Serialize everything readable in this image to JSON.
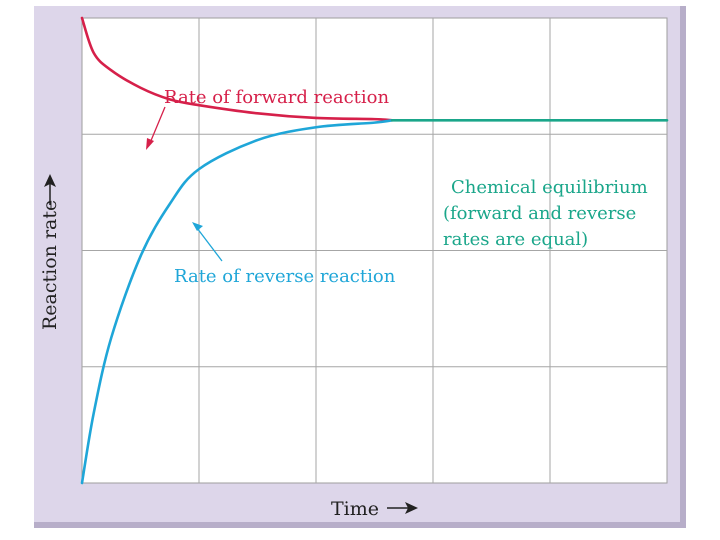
{
  "chart_data": {
    "type": "line",
    "xlabel": "Time",
    "ylabel": "Reaction rate",
    "xlim": [
      0,
      5
    ],
    "ylim": [
      0,
      4
    ],
    "grid": true,
    "series": [
      {
        "name": "Rate of forward reaction",
        "color": "#d6204a",
        "x": [
          0,
          0.1,
          0.25,
          0.5,
          0.75,
          1.0,
          1.5,
          2.0,
          2.5,
          2.65
        ],
        "y": [
          4.0,
          3.7,
          3.55,
          3.4,
          3.3,
          3.25,
          3.18,
          3.14,
          3.13,
          3.12
        ]
      },
      {
        "name": "Rate of reverse reaction",
        "color": "#1fa6d8",
        "x": [
          0,
          0.1,
          0.25,
          0.5,
          0.75,
          1.0,
          1.5,
          2.0,
          2.5,
          2.65
        ],
        "y": [
          0,
          0.6,
          1.25,
          1.95,
          2.4,
          2.7,
          2.95,
          3.06,
          3.1,
          3.12
        ]
      },
      {
        "name": "Chemical equilibrium",
        "color": "#1aa68a",
        "x": [
          2.65,
          5.0
        ],
        "y": [
          3.12,
          3.12
        ]
      }
    ],
    "annotations": [
      {
        "text": "Rate of forward reaction",
        "color": "#d6204a"
      },
      {
        "text": "Rate of reverse reaction",
        "color": "#1fa6d8"
      },
      {
        "text_lines": [
          "Chemical equilibrium",
          "(forward and reverse",
          "rates are equal)"
        ],
        "color": "#1aa68a"
      }
    ]
  }
}
